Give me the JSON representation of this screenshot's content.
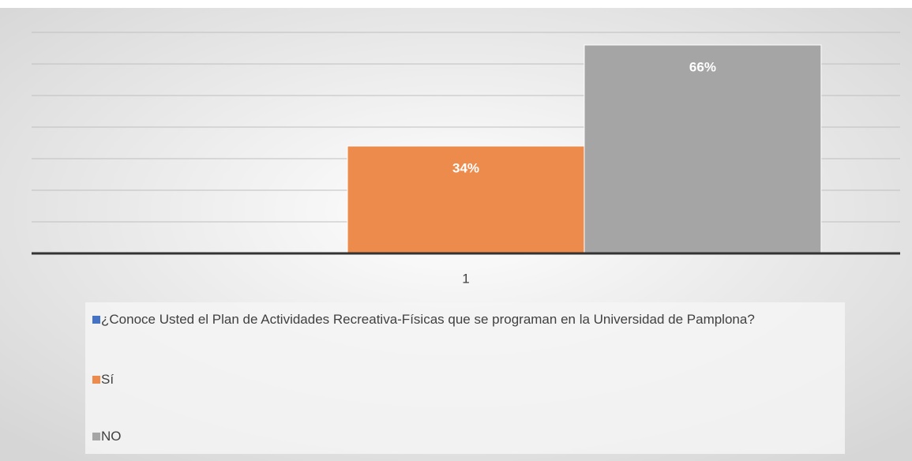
{
  "chart_data": {
    "type": "bar",
    "categories": [
      "1"
    ],
    "series": [
      {
        "name": "¿Conoce Usted el Plan de Actividades Recreativa-Físicas que se programan en la Universidad de Pamplona?",
        "color": "#4472c4",
        "values": [
          null
        ]
      },
      {
        "name": "Sí",
        "color": "#ed8b4d",
        "values": [
          34
        ],
        "value_labels": [
          "34%"
        ]
      },
      {
        "name": "NO",
        "color": "#a5a5a5",
        "values": [
          66
        ],
        "value_labels": [
          "66%"
        ]
      }
    ],
    "ylim": [
      0,
      80
    ],
    "yticks": [
      0,
      10,
      20,
      30,
      40,
      50,
      60,
      70
    ],
    "grid": true,
    "legend": "bottom"
  }
}
